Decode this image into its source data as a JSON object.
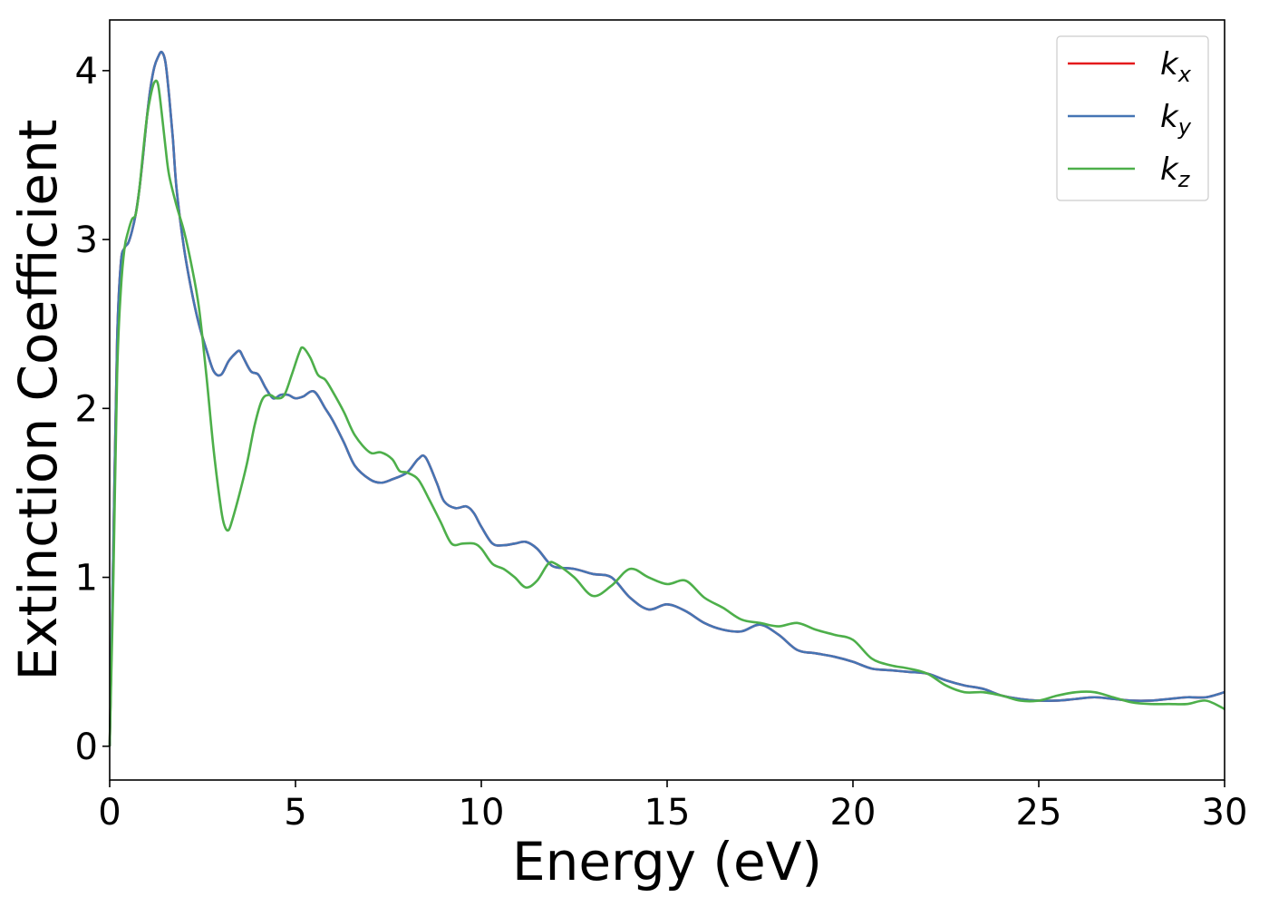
{
  "chart_data": {
    "type": "line",
    "xlabel": "Energy (eV)",
    "ylabel": "Extinction Coefficient",
    "xlim": [
      0,
      30
    ],
    "ylim": [
      -0.2,
      4.3
    ],
    "xticks": [
      0,
      5,
      10,
      15,
      20,
      25,
      30
    ],
    "yticks": [
      0,
      1,
      2,
      3,
      4
    ],
    "grid": false,
    "legend_position": "top-right",
    "series": [
      {
        "name": "k_x",
        "label_base": "k",
        "label_sub": "x",
        "color": "#e41a1c",
        "x": [
          0,
          0.1,
          0.2,
          0.3,
          0.4,
          0.5,
          0.6,
          0.7,
          0.8,
          0.9,
          1.0,
          1.1,
          1.2,
          1.3,
          1.4,
          1.5,
          1.6,
          1.7,
          1.8,
          2.0,
          2.2,
          2.4,
          2.6,
          2.8,
          3.0,
          3.2,
          3.4,
          3.5,
          3.6,
          3.8,
          4.0,
          4.2,
          4.4,
          4.6,
          4.8,
          5.0,
          5.2,
          5.5,
          5.8,
          6.0,
          6.3,
          6.6,
          7.0,
          7.3,
          7.6,
          8.0,
          8.3,
          8.5,
          8.8,
          9.0,
          9.3,
          9.6,
          9.8,
          10.0,
          10.3,
          10.6,
          10.9,
          11.2,
          11.5,
          11.8,
          12.0,
          12.5,
          13.0,
          13.5,
          14.0,
          14.5,
          15.0,
          15.5,
          16.0,
          16.5,
          17.0,
          17.5,
          18.0,
          18.5,
          19.0,
          19.5,
          20.0,
          20.5,
          21.0,
          21.5,
          22.0,
          22.5,
          23.0,
          23.5,
          24.0,
          24.5,
          25.0,
          25.5,
          26.0,
          26.5,
          27.0,
          27.5,
          28.0,
          28.5,
          29.0,
          29.5,
          30.0
        ],
        "values": [
          0,
          1.2,
          2.4,
          2.86,
          2.95,
          2.98,
          3.05,
          3.15,
          3.3,
          3.5,
          3.72,
          3.9,
          4.02,
          4.08,
          4.11,
          4.05,
          3.85,
          3.6,
          3.3,
          2.95,
          2.7,
          2.5,
          2.35,
          2.22,
          2.2,
          2.28,
          2.33,
          2.34,
          2.3,
          2.22,
          2.2,
          2.12,
          2.06,
          2.08,
          2.08,
          2.06,
          2.07,
          2.1,
          2.0,
          1.93,
          1.8,
          1.66,
          1.58,
          1.56,
          1.58,
          1.62,
          1.7,
          1.71,
          1.56,
          1.45,
          1.41,
          1.42,
          1.38,
          1.3,
          1.2,
          1.19,
          1.2,
          1.21,
          1.17,
          1.09,
          1.06,
          1.05,
          1.02,
          1.0,
          0.88,
          0.81,
          0.84,
          0.8,
          0.73,
          0.69,
          0.68,
          0.72,
          0.66,
          0.57,
          0.55,
          0.53,
          0.5,
          0.46,
          0.45,
          0.44,
          0.43,
          0.39,
          0.36,
          0.34,
          0.3,
          0.28,
          0.27,
          0.27,
          0.28,
          0.29,
          0.28,
          0.27,
          0.27,
          0.28,
          0.29,
          0.29,
          0.32
        ]
      },
      {
        "name": "k_y",
        "label_base": "k",
        "label_sub": "y",
        "color": "#4575b4",
        "x": [
          0,
          0.1,
          0.2,
          0.3,
          0.4,
          0.5,
          0.6,
          0.7,
          0.8,
          0.9,
          1.0,
          1.1,
          1.2,
          1.3,
          1.4,
          1.5,
          1.6,
          1.7,
          1.8,
          2.0,
          2.2,
          2.4,
          2.6,
          2.8,
          3.0,
          3.2,
          3.4,
          3.5,
          3.6,
          3.8,
          4.0,
          4.2,
          4.4,
          4.6,
          4.8,
          5.0,
          5.2,
          5.5,
          5.8,
          6.0,
          6.3,
          6.6,
          7.0,
          7.3,
          7.6,
          8.0,
          8.3,
          8.5,
          8.8,
          9.0,
          9.3,
          9.6,
          9.8,
          10.0,
          10.3,
          10.6,
          10.9,
          11.2,
          11.5,
          11.8,
          12.0,
          12.5,
          13.0,
          13.5,
          14.0,
          14.5,
          15.0,
          15.5,
          16.0,
          16.5,
          17.0,
          17.5,
          18.0,
          18.5,
          19.0,
          19.5,
          20.0,
          20.5,
          21.0,
          21.5,
          22.0,
          22.5,
          23.0,
          23.5,
          24.0,
          24.5,
          25.0,
          25.5,
          26.0,
          26.5,
          27.0,
          27.5,
          28.0,
          28.5,
          29.0,
          29.5,
          30.0
        ],
        "values": [
          0,
          1.2,
          2.4,
          2.86,
          2.95,
          2.98,
          3.05,
          3.15,
          3.3,
          3.5,
          3.72,
          3.9,
          4.02,
          4.08,
          4.11,
          4.05,
          3.85,
          3.6,
          3.3,
          2.95,
          2.7,
          2.5,
          2.35,
          2.22,
          2.2,
          2.28,
          2.33,
          2.34,
          2.3,
          2.22,
          2.2,
          2.12,
          2.06,
          2.08,
          2.08,
          2.06,
          2.07,
          2.1,
          2.0,
          1.93,
          1.8,
          1.66,
          1.58,
          1.56,
          1.58,
          1.62,
          1.7,
          1.71,
          1.56,
          1.45,
          1.41,
          1.42,
          1.38,
          1.3,
          1.2,
          1.19,
          1.2,
          1.21,
          1.17,
          1.09,
          1.06,
          1.05,
          1.02,
          1.0,
          0.88,
          0.81,
          0.84,
          0.8,
          0.73,
          0.69,
          0.68,
          0.72,
          0.66,
          0.57,
          0.55,
          0.53,
          0.5,
          0.46,
          0.45,
          0.44,
          0.43,
          0.39,
          0.36,
          0.34,
          0.3,
          0.28,
          0.27,
          0.27,
          0.28,
          0.29,
          0.28,
          0.27,
          0.27,
          0.28,
          0.29,
          0.29,
          0.32
        ]
      },
      {
        "name": "k_z",
        "label_base": "k",
        "label_sub": "z",
        "color": "#4daf4a",
        "x": [
          0,
          0.1,
          0.2,
          0.3,
          0.4,
          0.5,
          0.6,
          0.7,
          0.8,
          0.9,
          1.0,
          1.1,
          1.2,
          1.3,
          1.4,
          1.5,
          1.6,
          1.8,
          2.0,
          2.2,
          2.4,
          2.6,
          2.8,
          3.0,
          3.1,
          3.2,
          3.3,
          3.5,
          3.7,
          3.9,
          4.1,
          4.3,
          4.5,
          4.7,
          4.9,
          5.1,
          5.2,
          5.4,
          5.6,
          5.8,
          6.0,
          6.3,
          6.6,
          7.0,
          7.3,
          7.6,
          7.8,
          8.0,
          8.3,
          8.6,
          8.9,
          9.2,
          9.5,
          9.8,
          10.0,
          10.3,
          10.6,
          10.9,
          11.2,
          11.5,
          11.8,
          12.0,
          12.5,
          13.0,
          13.5,
          14.0,
          14.5,
          15.0,
          15.5,
          16.0,
          16.5,
          17.0,
          17.5,
          18.0,
          18.5,
          19.0,
          19.5,
          20.0,
          20.5,
          21.0,
          21.5,
          22.0,
          22.5,
          23.0,
          23.5,
          24.0,
          24.5,
          25.0,
          25.5,
          26.0,
          26.5,
          27.0,
          27.5,
          28.0,
          28.5,
          29.0,
          29.5,
          30.0
        ],
        "values": [
          0,
          1.0,
          2.2,
          2.7,
          2.95,
          3.05,
          3.12,
          3.15,
          3.3,
          3.52,
          3.72,
          3.85,
          3.93,
          3.92,
          3.75,
          3.55,
          3.38,
          3.2,
          3.05,
          2.85,
          2.6,
          2.2,
          1.75,
          1.4,
          1.3,
          1.28,
          1.34,
          1.5,
          1.68,
          1.9,
          2.05,
          2.08,
          2.06,
          2.08,
          2.2,
          2.33,
          2.36,
          2.3,
          2.2,
          2.17,
          2.1,
          1.98,
          1.84,
          1.74,
          1.74,
          1.7,
          1.63,
          1.62,
          1.58,
          1.46,
          1.33,
          1.2,
          1.2,
          1.2,
          1.17,
          1.08,
          1.05,
          1.0,
          0.94,
          0.98,
          1.08,
          1.08,
          1.0,
          0.89,
          0.95,
          1.05,
          1.0,
          0.96,
          0.98,
          0.88,
          0.82,
          0.75,
          0.73,
          0.71,
          0.73,
          0.69,
          0.66,
          0.63,
          0.52,
          0.48,
          0.46,
          0.43,
          0.36,
          0.32,
          0.32,
          0.3,
          0.27,
          0.27,
          0.3,
          0.32,
          0.32,
          0.29,
          0.26,
          0.25,
          0.25,
          0.25,
          0.27,
          0.22
        ]
      }
    ]
  }
}
